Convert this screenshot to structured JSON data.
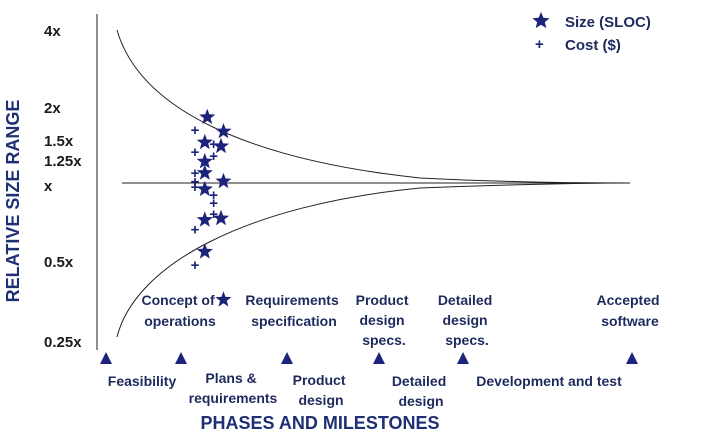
{
  "chart_data": {
    "type": "scatter",
    "ylabel": "RELATIVE SIZE RANGE",
    "xlabel": "PHASES AND MILESTONES",
    "y_scale": "log2",
    "ylim": [
      0.25,
      4
    ],
    "y_ticks": [
      {
        "value": 4,
        "label": "4x"
      },
      {
        "value": 2,
        "label": "2x"
      },
      {
        "value": 1.5,
        "label": "1.5x"
      },
      {
        "value": 1.25,
        "label": "1.25x"
      },
      {
        "value": 1,
        "label": "x"
      },
      {
        "value": 0.5,
        "label": "0.5x"
      },
      {
        "value": 0.25,
        "label": "0.25x"
      }
    ],
    "legend": {
      "placement": "top-right",
      "entries": [
        {
          "marker": "star",
          "label": "Size (SLOC)"
        },
        {
          "marker": "cross",
          "label": "Cost ($)"
        }
      ]
    },
    "milestones": [
      {
        "text": "Concept of operations"
      },
      {
        "text": "Requirements specification"
      },
      {
        "text": "Product design specs."
      },
      {
        "text": "Detailed design specs."
      },
      {
        "text": "Accepted software"
      }
    ],
    "phases": [
      {
        "text": "Feasibility"
      },
      {
        "text": "Plans & requirements"
      },
      {
        "text": "Product design"
      },
      {
        "text": "Detailed design"
      },
      {
        "text": "Development and test"
      }
    ],
    "series": [
      {
        "name": "Size (SLOC)",
        "marker": "star",
        "x": [
          2.25,
          2.22,
          2.22,
          2.22,
          2.22,
          2.22,
          2.22,
          2.45,
          2.42,
          2.45,
          2.42,
          2.45
        ],
        "y": [
          1.82,
          1.45,
          1.22,
          1.1,
          0.95,
          0.72,
          0.54,
          1.6,
          1.4,
          1.02,
          0.73,
          0.35
        ]
      },
      {
        "name": "Cost ($)",
        "marker": "cross",
        "x": [
          2.1,
          2.1,
          2.1,
          2.1,
          2.1,
          2.1,
          2.1,
          2.33,
          2.33,
          2.33,
          2.33,
          2.33
        ],
        "y": [
          1.62,
          1.33,
          1.1,
          1.02,
          0.97,
          0.66,
          0.48,
          1.43,
          1.28,
          0.9,
          0.84,
          0.76
        ]
      }
    ],
    "envelope": {
      "upper_start": 4,
      "lower_start": 0.25,
      "converges_to": 1
    },
    "x_milestone_positions": [
      1,
      2,
      3,
      4,
      5
    ]
  }
}
